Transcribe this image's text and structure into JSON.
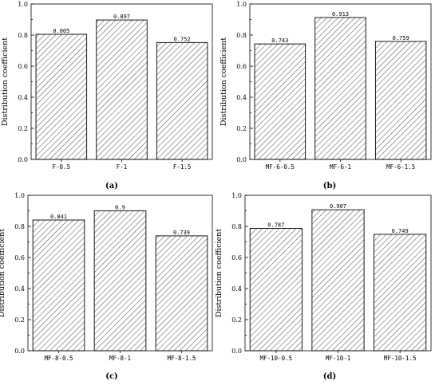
{
  "chart_data": [
    {
      "type": "bar",
      "panel_label": "(a)",
      "categories": [
        "F-0.5",
        "F-1",
        "F-1.5"
      ],
      "values": [
        0.805,
        0.897,
        0.752
      ],
      "data_labels": [
        "0.805",
        "0.897",
        "0.752"
      ],
      "title": "",
      "xlabel": "",
      "ylabel": "Distribution coefficient",
      "ylim": [
        0,
        1.0
      ],
      "yticks": [
        "0.0",
        "0.2",
        "0.4",
        "0.6",
        "0.8",
        "1.0"
      ],
      "fill": "diagonal-hatch",
      "grid": false,
      "legend": "none"
    },
    {
      "type": "bar",
      "panel_label": "(b)",
      "categories": [
        "MF-6-0.5",
        "MF-6-1",
        "MF-6-1.5"
      ],
      "values": [
        0.743,
        0.913,
        0.759
      ],
      "data_labels": [
        "0.743",
        "0.913",
        "0.759"
      ],
      "title": "",
      "xlabel": "",
      "ylabel": "Distribution coefficient",
      "ylim": [
        0,
        1.0
      ],
      "yticks": [
        "0.0",
        "0.2",
        "0.4",
        "0.6",
        "0.8",
        "1.0"
      ],
      "fill": "diagonal-hatch",
      "grid": false,
      "legend": "none"
    },
    {
      "type": "bar",
      "panel_label": "(c)",
      "categories": [
        "MF-8-0.5",
        "MF-8-1",
        "MF-8-1.5"
      ],
      "values": [
        0.841,
        0.9,
        0.739
      ],
      "data_labels": [
        "0.841",
        "0.9",
        "0.739"
      ],
      "title": "",
      "xlabel": "",
      "ylabel": "Distribution coefficient",
      "ylim": [
        0,
        1.0
      ],
      "yticks": [
        "0.0",
        "0.2",
        "0.4",
        "0.6",
        "0.8",
        "1.0"
      ],
      "fill": "diagonal-hatch",
      "grid": false,
      "legend": "none"
    },
    {
      "type": "bar",
      "panel_label": "(d)",
      "categories": [
        "MF-10-0.5",
        "MF-10-1",
        "MF-10-1.5"
      ],
      "values": [
        0.787,
        0.907,
        0.749
      ],
      "data_labels": [
        "0.787",
        "0.907",
        "0.749"
      ],
      "title": "",
      "xlabel": "",
      "ylabel": "Distribution coefficient",
      "ylim": [
        0,
        1.0
      ],
      "yticks": [
        "0.0",
        "0.2",
        "0.4",
        "0.6",
        "0.8",
        "1.0"
      ],
      "fill": "diagonal-hatch",
      "grid": false,
      "legend": "none"
    }
  ],
  "colors": {
    "axis": "#000000",
    "bar_stroke": "#000000",
    "hatch": "#000000",
    "background": "#ffffff"
  }
}
